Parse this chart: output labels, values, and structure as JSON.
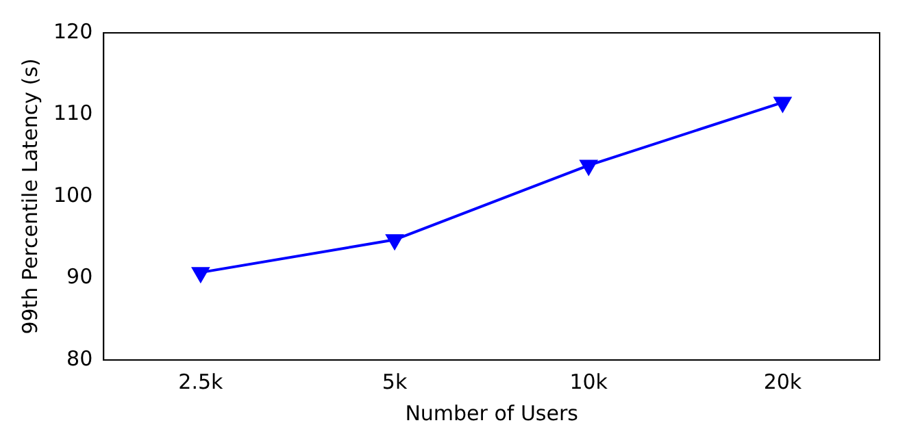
{
  "chart_data": {
    "type": "line",
    "xlabel": "Number of Users",
    "ylabel": "99th Percentile Latency (s)",
    "categories": [
      "2.5k",
      "5k",
      "10k",
      "20k"
    ],
    "series": [
      {
        "color": "#0000ff",
        "values": [
          90.7,
          94.7,
          103.8,
          111.5
        ]
      }
    ],
    "ylim": [
      80,
      120
    ],
    "yticks": [
      80,
      90,
      100,
      110,
      120
    ],
    "grid": false,
    "marker": "triangle",
    "line_style": "solid"
  }
}
